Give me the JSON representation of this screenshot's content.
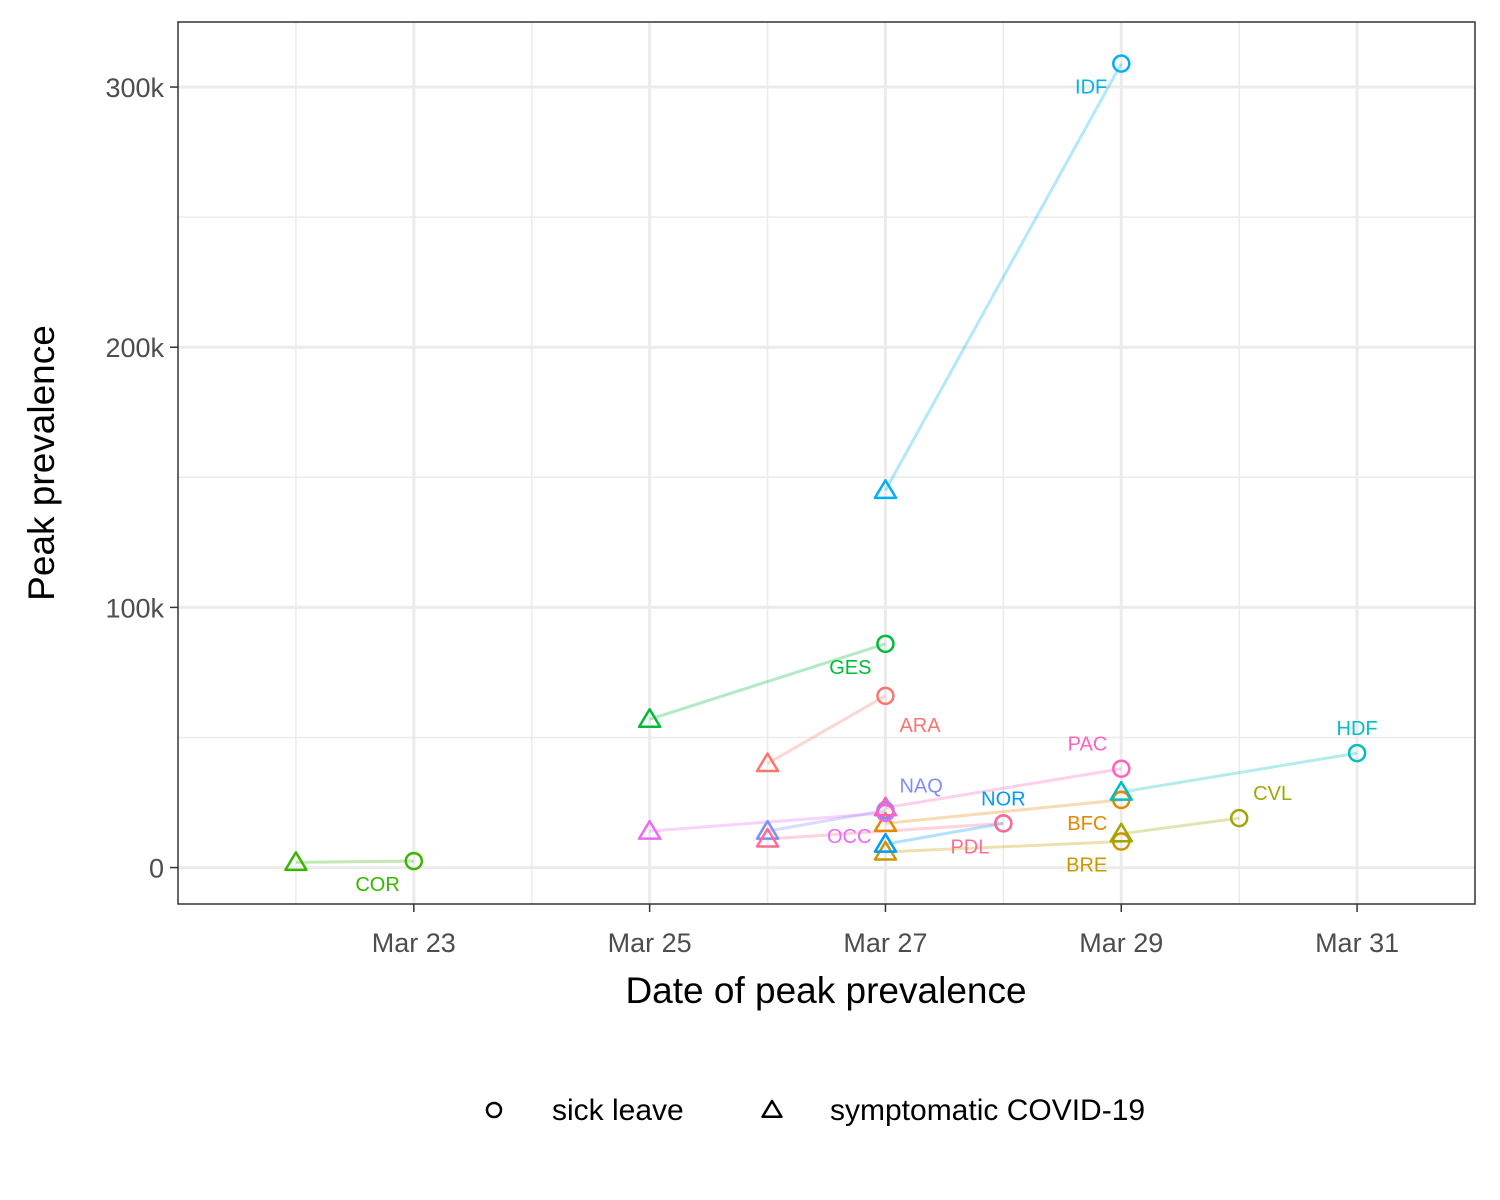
{
  "chart_data": {
    "type": "scatter",
    "title": "",
    "xlabel": "Date of peak prevalence",
    "ylabel": "Peak prevalence",
    "x_ticks": [
      {
        "date": "2020-03-23",
        "label": "Mar 23"
      },
      {
        "date": "2020-03-25",
        "label": "Mar 25"
      },
      {
        "date": "2020-03-27",
        "label": "Mar 27"
      },
      {
        "date": "2020-03-29",
        "label": "Mar 29"
      },
      {
        "date": "2020-03-31",
        "label": "Mar 31"
      }
    ],
    "y_ticks": [
      {
        "value": 0,
        "label": "0"
      },
      {
        "value": 100000,
        "label": "100k"
      },
      {
        "value": 200000,
        "label": "200k"
      },
      {
        "value": 300000,
        "label": "300k"
      }
    ],
    "xlim": [
      "2020-03-21",
      "2020-04-01"
    ],
    "ylim": [
      -14000,
      325000
    ],
    "grid": true,
    "legend_position": "bottom",
    "legend": [
      {
        "shape": "circle",
        "label": "sick leave"
      },
      {
        "shape": "triangle",
        "label": "symptomatic COVID-19"
      }
    ],
    "regions": [
      {
        "name": "ARA",
        "color": "#F8766D",
        "symptomatic": {
          "date": "2020-03-26",
          "value": 40000
        },
        "sick_leave": {
          "date": "2020-03-27",
          "value": 66000
        },
        "label_anchor": "sick_leave",
        "label_pos": "below-right"
      },
      {
        "name": "BFC",
        "color": "#E58700",
        "symptomatic": {
          "date": "2020-03-27",
          "value": 17000
        },
        "sick_leave": {
          "date": "2020-03-29",
          "value": 26000
        },
        "label_anchor": "sick_leave",
        "label_pos": "below-left"
      },
      {
        "name": "BRE",
        "color": "#C99800",
        "symptomatic": {
          "date": "2020-03-27",
          "value": 6000
        },
        "sick_leave": {
          "date": "2020-03-29",
          "value": 10000
        },
        "label_anchor": "sick_leave",
        "label_pos": "below-left"
      },
      {
        "name": "CVL",
        "color": "#A3A500",
        "symptomatic": {
          "date": "2020-03-29",
          "value": 13000
        },
        "sick_leave": {
          "date": "2020-03-30",
          "value": 19000
        },
        "label_anchor": "sick_leave",
        "label_pos": "above-right"
      },
      {
        "name": "COR",
        "color": "#39B600",
        "symptomatic": {
          "date": "2020-03-22",
          "value": 2000
        },
        "sick_leave": {
          "date": "2020-03-23",
          "value": 2500
        },
        "label_anchor": "sick_leave",
        "label_pos": "below-left"
      },
      {
        "name": "GES",
        "color": "#00BA38",
        "symptomatic": {
          "date": "2020-03-25",
          "value": 57000
        },
        "sick_leave": {
          "date": "2020-03-27",
          "value": 86000
        },
        "label_anchor": "sick_leave",
        "label_pos": "below-left"
      },
      {
        "name": "HDF",
        "color": "#00BFC4",
        "symptomatic": {
          "date": "2020-03-29",
          "value": 29000
        },
        "sick_leave": {
          "date": "2020-03-31",
          "value": 44000
        },
        "label_anchor": "sick_leave",
        "label_pos": "above"
      },
      {
        "name": "IDF",
        "color": "#00B0F6",
        "symptomatic": {
          "date": "2020-03-27",
          "value": 145000
        },
        "sick_leave": {
          "date": "2020-03-29",
          "value": 309000
        },
        "label_anchor": "sick_leave",
        "label_pos": "below-left"
      },
      {
        "name": "NOR",
        "color": "#0099FF",
        "symptomatic": {
          "date": "2020-03-27",
          "value": 9000
        },
        "sick_leave": {
          "date": "2020-03-28",
          "value": 17000
        },
        "label_anchor": "sick_leave",
        "label_pos": "above"
      },
      {
        "name": "NAQ",
        "color": "#7F8CFF",
        "symptomatic": {
          "date": "2020-03-26",
          "value": 14000
        },
        "sick_leave": {
          "date": "2020-03-27",
          "value": 22000
        },
        "label_anchor": "sick_leave",
        "label_pos": "above-right"
      },
      {
        "name": "OCC",
        "color": "#E76BF3",
        "symptomatic": {
          "date": "2020-03-25",
          "value": 14000
        },
        "sick_leave": {
          "date": "2020-03-27",
          "value": 21000
        },
        "label_anchor": "sick_leave",
        "label_pos": "below-left"
      },
      {
        "name": "PAC",
        "color": "#FF62BC",
        "symptomatic": {
          "date": "2020-03-27",
          "value": 23000
        },
        "sick_leave": {
          "date": "2020-03-29",
          "value": 38000
        },
        "label_anchor": "sick_leave",
        "label_pos": "above-left"
      },
      {
        "name": "PDL",
        "color": "#FF6C91",
        "symptomatic": {
          "date": "2020-03-26",
          "value": 11000
        },
        "sick_leave": {
          "date": "2020-03-28",
          "value": 17000
        },
        "label_anchor": "sick_leave",
        "label_pos": "below-left"
      }
    ]
  }
}
